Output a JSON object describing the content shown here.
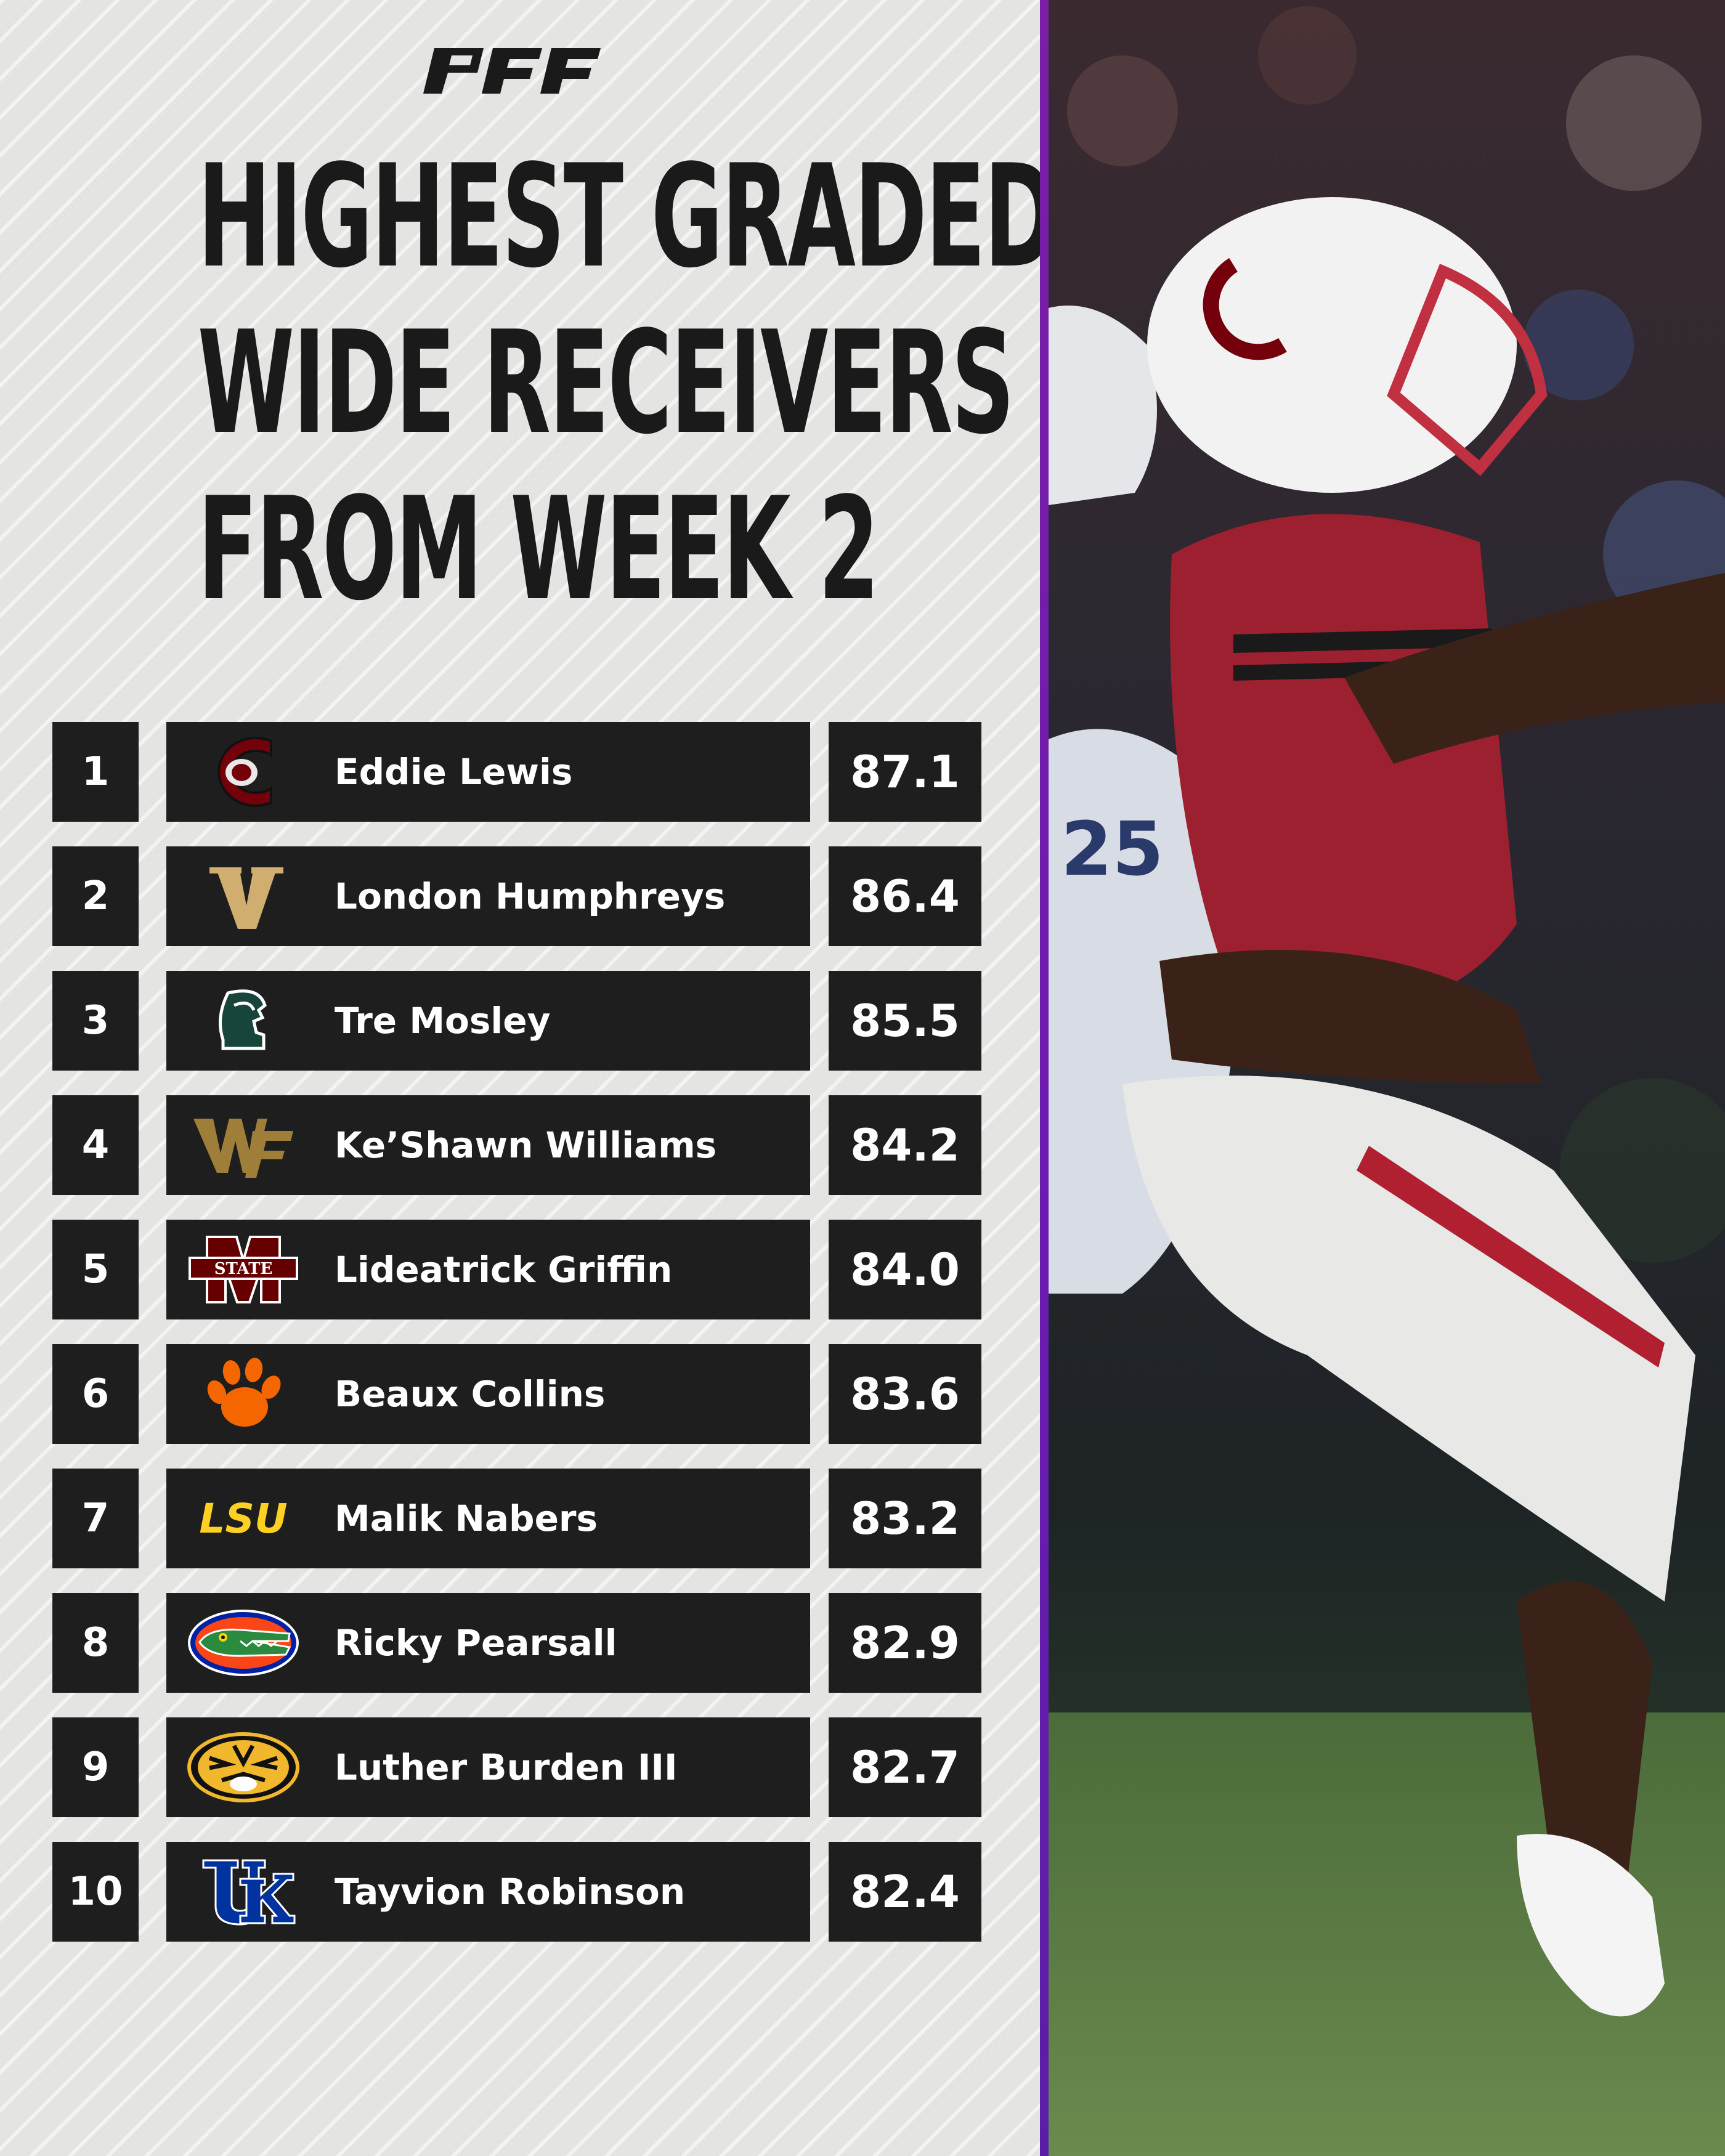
{
  "brand": "PFF",
  "title_lines": [
    "HIGHEST GRADED",
    "WIDE RECEIVERS",
    "FROM WEEK 2"
  ],
  "rankings": [
    {
      "rank": "1",
      "logo": "south-carolina-logo",
      "name": "Eddie Lewis",
      "grade": "87.1"
    },
    {
      "rank": "2",
      "logo": "vanderbilt-logo",
      "name": "London Humphreys",
      "grade": "86.4"
    },
    {
      "rank": "3",
      "logo": "michigan-state-logo",
      "name": "Tre Mosley",
      "grade": "85.5"
    },
    {
      "rank": "4",
      "logo": "wake-forest-logo",
      "name": "Ke’Shawn Williams",
      "grade": "84.2"
    },
    {
      "rank": "5",
      "logo": "mississippi-state-logo",
      "name": "Lideatrick Griffin",
      "grade": "84.0"
    },
    {
      "rank": "6",
      "logo": "clemson-logo",
      "name": "Beaux Collins",
      "grade": "83.6"
    },
    {
      "rank": "7",
      "logo": "lsu-logo",
      "name": "Malik Nabers",
      "grade": "83.2"
    },
    {
      "rank": "8",
      "logo": "florida-logo",
      "name": "Ricky Pearsall",
      "grade": "82.9"
    },
    {
      "rank": "9",
      "logo": "missouri-logo",
      "name": "Luther Burden III",
      "grade": "82.7"
    },
    {
      "rank": "10",
      "logo": "kentucky-logo",
      "name": "Tayvion Robinson",
      "grade": "82.4"
    }
  ],
  "logo_text": {
    "lsu": "LSU",
    "state": "STATE"
  },
  "colors": {
    "background": "#e4e4e2",
    "box": "#1e1e1e",
    "text": "#ffffff",
    "title": "#1a1a1a",
    "divider": "#6a1bb0"
  }
}
